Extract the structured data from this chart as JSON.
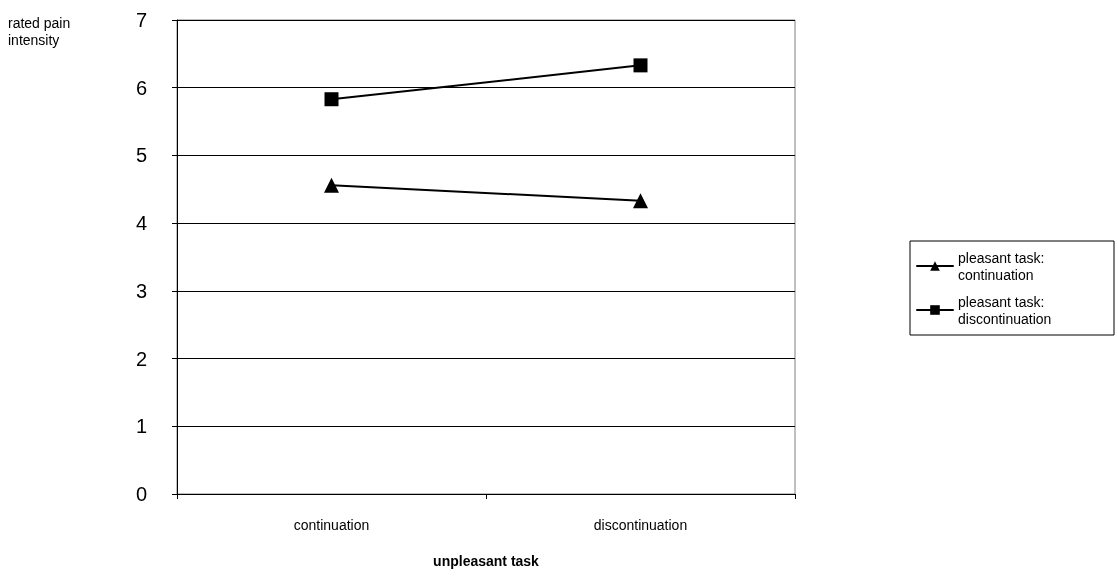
{
  "chart_data": {
    "type": "line",
    "xlabel": "unpleasant task",
    "ylabel": "rated pain intensity",
    "categories": [
      "continuation",
      "discontinuation"
    ],
    "series": [
      {
        "name": "pleasant task: continuation",
        "color": "#000000",
        "marker": "triangle",
        "values": [
          4.56,
          4.33
        ]
      },
      {
        "name": "pleasant task: discontinuation",
        "color": "#000000",
        "marker": "square",
        "values": [
          5.83,
          6.33
        ]
      }
    ],
    "ylim": [
      0,
      7
    ],
    "yticks": [
      0,
      1,
      2,
      3,
      4,
      5,
      6,
      7
    ],
    "grid": "y",
    "legend": "right",
    "line_style": "solid"
  }
}
